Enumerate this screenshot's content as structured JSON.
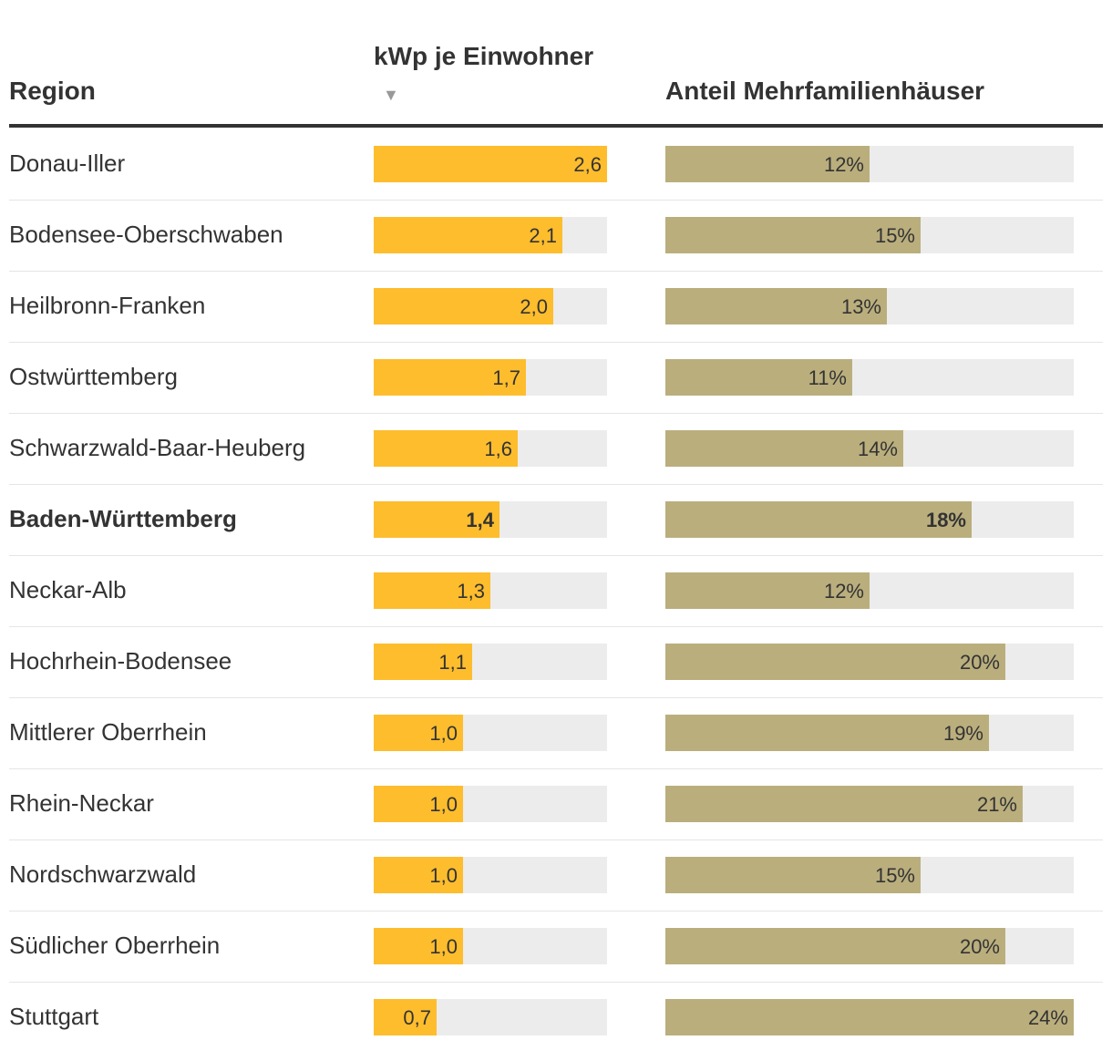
{
  "colors": {
    "kwp_bar": "#fdbd2d",
    "mfh_bar": "#baae7d",
    "track": "#ececec",
    "rule": "#333333",
    "sort_arrow": "#999999"
  },
  "header": {
    "region": "Region",
    "kwp": "kWp je Einwohner",
    "sort_icon": "▼",
    "mfh": "Anteil Mehrfamilienhäuser"
  },
  "chart_data": {
    "type": "table",
    "title": "",
    "columns": [
      "Region",
      "kWp je Einwohner",
      "Anteil Mehrfamilienhäuser"
    ],
    "kwp_range": [
      0,
      2.6
    ],
    "mfh_range": [
      0,
      24
    ],
    "sort": {
      "column": "kWp je Einwohner",
      "order": "descending"
    },
    "rows": [
      {
        "region": "Donau-Iller",
        "kwp": 2.6,
        "kwp_label": "2,6",
        "mfh": 12,
        "mfh_label": "12%",
        "bold": false
      },
      {
        "region": "Bodensee-Oberschwaben",
        "kwp": 2.1,
        "kwp_label": "2,1",
        "mfh": 15,
        "mfh_label": "15%",
        "bold": false
      },
      {
        "region": "Heilbronn-Franken",
        "kwp": 2.0,
        "kwp_label": "2,0",
        "mfh": 13,
        "mfh_label": "13%",
        "bold": false
      },
      {
        "region": "Ostwürttemberg",
        "kwp": 1.7,
        "kwp_label": "1,7",
        "mfh": 11,
        "mfh_label": "11%",
        "bold": false
      },
      {
        "region": "Schwarzwald-Baar-Heuberg",
        "kwp": 1.6,
        "kwp_label": "1,6",
        "mfh": 14,
        "mfh_label": "14%",
        "bold": false
      },
      {
        "region": "Baden-Württemberg",
        "kwp": 1.4,
        "kwp_label": "1,4",
        "mfh": 18,
        "mfh_label": "18%",
        "bold": true
      },
      {
        "region": "Neckar-Alb",
        "kwp": 1.3,
        "kwp_label": "1,3",
        "mfh": 12,
        "mfh_label": "12%",
        "bold": false
      },
      {
        "region": "Hochrhein-Bodensee",
        "kwp": 1.1,
        "kwp_label": "1,1",
        "mfh": 20,
        "mfh_label": "20%",
        "bold": false
      },
      {
        "region": "Mittlerer Oberrhein",
        "kwp": 1.0,
        "kwp_label": "1,0",
        "mfh": 19,
        "mfh_label": "19%",
        "bold": false
      },
      {
        "region": "Rhein-Neckar",
        "kwp": 1.0,
        "kwp_label": "1,0",
        "mfh": 21,
        "mfh_label": "21%",
        "bold": false
      },
      {
        "region": "Nordschwarzwald",
        "kwp": 1.0,
        "kwp_label": "1,0",
        "mfh": 15,
        "mfh_label": "15%",
        "bold": false
      },
      {
        "region": "Südlicher Oberrhein",
        "kwp": 1.0,
        "kwp_label": "1,0",
        "mfh": 20,
        "mfh_label": "20%",
        "bold": false
      },
      {
        "region": "Stuttgart",
        "kwp": 0.7,
        "kwp_label": "0,7",
        "mfh": 24,
        "mfh_label": "24%",
        "bold": false
      }
    ]
  }
}
